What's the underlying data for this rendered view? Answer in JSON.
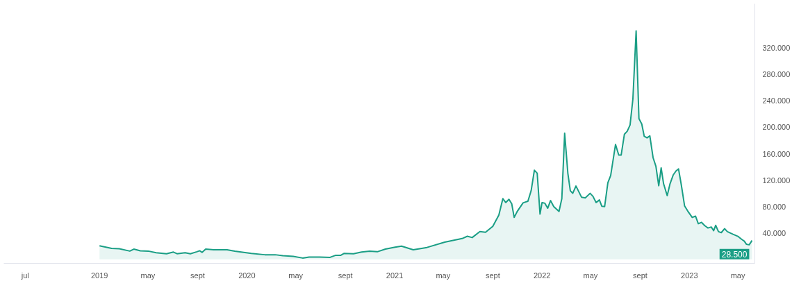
{
  "chart_data": {
    "type": "area",
    "x": [
      "2019-01-01",
      "2019-01-31",
      "2019-02-19",
      "2019-03-17",
      "2019-03-27",
      "2019-04-12",
      "2019-05-02",
      "2019-05-21",
      "2019-06-16",
      "2019-07-03",
      "2019-07-12",
      "2019-08-01",
      "2019-08-14",
      "2019-08-30",
      "2019-09-06",
      "2019-09-12",
      "2019-09-21",
      "2019-10-11",
      "2019-11-13",
      "2019-12-02",
      "2020-01-12",
      "2020-02-14",
      "2020-03-11",
      "2020-03-30",
      "2020-04-25",
      "2020-05-18",
      "2020-06-03",
      "2020-06-29",
      "2020-07-25",
      "2020-08-07",
      "2020-08-20",
      "2020-08-29",
      "2020-09-21",
      "2020-10-11",
      "2020-10-31",
      "2020-11-19",
      "2020-12-09",
      "2021-01-02",
      "2021-01-18",
      "2021-02-16",
      "2021-03-22",
      "2021-05-05",
      "2021-06-17",
      "2021-06-30",
      "2021-07-12",
      "2021-07-31",
      "2021-08-14",
      "2021-09-01",
      "2021-09-16",
      "2021-09-26",
      "2021-10-03",
      "2021-10-11",
      "2021-10-18",
      "2021-10-24",
      "2021-11-01",
      "2021-11-15",
      "2021-11-27",
      "2021-12-05",
      "2021-12-13",
      "2021-12-20",
      "2021-12-27",
      "2022-01-01",
      "2022-01-08",
      "2022-01-15",
      "2022-01-22",
      "2022-01-30",
      "2022-02-12",
      "2022-02-19",
      "2022-02-26",
      "2022-03-06",
      "2022-03-12",
      "2022-03-18",
      "2022-03-26",
      "2022-04-09",
      "2022-04-18",
      "2022-04-30",
      "2022-05-07",
      "2022-05-15",
      "2022-05-23",
      "2022-05-29",
      "2022-06-05",
      "2022-06-13",
      "2022-06-20",
      "2022-07-02",
      "2022-07-10",
      "2022-07-16",
      "2022-07-24",
      "2022-07-31",
      "2022-08-07",
      "2022-08-14",
      "2022-08-22",
      "2022-08-29",
      "2022-09-05",
      "2022-09-11",
      "2022-09-18",
      "2022-09-25",
      "2022-10-03",
      "2022-10-10",
      "2022-10-17",
      "2022-10-23",
      "2022-10-29",
      "2022-11-07",
      "2022-11-14",
      "2022-11-22",
      "2022-11-29",
      "2022-12-05",
      "2022-12-12",
      "2022-12-20",
      "2022-12-28",
      "2023-01-08",
      "2023-01-16",
      "2023-01-23",
      "2023-01-31",
      "2023-02-08",
      "2023-02-16",
      "2023-02-24",
      "2023-03-02",
      "2023-03-07",
      "2023-03-14",
      "2023-03-21",
      "2023-03-29",
      "2023-04-05",
      "2023-04-19",
      "2023-05-02",
      "2023-05-10",
      "2023-05-17",
      "2023-05-22",
      "2023-05-29",
      "2023-06-05"
    ],
    "series": [
      {
        "color": "#1a9e85",
        "values": [
          20.5,
          16.5,
          16,
          12.5,
          15.5,
          13,
          12.5,
          10,
          8.5,
          11,
          8.5,
          10,
          8.5,
          11.5,
          13,
          10.5,
          15.5,
          14.5,
          14.5,
          12.5,
          9,
          7,
          7,
          5.5,
          4.5,
          2,
          3.5,
          3.5,
          3,
          6,
          6,
          9,
          8.5,
          11,
          12.5,
          11.5,
          15.5,
          18.5,
          20,
          14.5,
          18,
          26,
          31.5,
          35,
          33,
          42,
          41,
          50,
          67,
          92,
          86,
          91,
          84,
          63.5,
          73,
          85.5,
          88,
          104,
          135,
          130.5,
          68.5,
          86,
          85,
          77.5,
          89,
          80,
          72.5,
          92,
          191,
          130,
          104,
          100,
          111,
          94,
          93,
          100,
          95.5,
          86,
          90,
          80.5,
          80,
          116,
          127,
          174,
          158,
          158,
          189.5,
          194,
          203.5,
          243,
          346,
          213,
          205,
          186.5,
          184,
          187,
          154,
          141,
          111.5,
          138.5,
          114.5,
          96.5,
          114.5,
          128,
          134,
          137,
          112.5,
          81,
          73,
          63.5,
          65.5,
          54,
          56,
          51,
          47.5,
          49,
          43.5,
          51.5,
          42,
          40.5,
          46.5,
          42,
          38,
          34.5,
          30.5,
          27.5,
          23,
          22,
          28.5
        ]
      }
    ],
    "xticks": [
      {
        "value": "2018-07-01",
        "label": "jul"
      },
      {
        "value": "2019-01-01",
        "label": "2019"
      },
      {
        "value": "2019-05-01",
        "label": "may"
      },
      {
        "value": "2019-09-01",
        "label": "sept"
      },
      {
        "value": "2020-01-01",
        "label": "2020"
      },
      {
        "value": "2020-05-01",
        "label": "may"
      },
      {
        "value": "2020-09-01",
        "label": "sept"
      },
      {
        "value": "2021-01-01",
        "label": "2021"
      },
      {
        "value": "2021-05-01",
        "label": "may"
      },
      {
        "value": "2021-09-01",
        "label": "sept"
      },
      {
        "value": "2022-01-01",
        "label": "2022"
      },
      {
        "value": "2022-05-01",
        "label": "may"
      },
      {
        "value": "2022-09-01",
        "label": "sept"
      },
      {
        "value": "2023-01-01",
        "label": "2023"
      },
      {
        "value": "2023-05-01",
        "label": "may"
      }
    ],
    "yticks": [
      {
        "value": 40,
        "label": "40.000"
      },
      {
        "value": 80,
        "label": "80.000"
      },
      {
        "value": 120,
        "label": "120.000"
      },
      {
        "value": 160,
        "label": "160.000"
      },
      {
        "value": 200,
        "label": "200.000"
      },
      {
        "value": 240,
        "label": "240.000"
      },
      {
        "value": 280,
        "label": "280.000"
      },
      {
        "value": 320,
        "label": "320.000"
      }
    ],
    "annotations": [
      {
        "text": "28.500",
        "x": "2023-06-05",
        "y": 28.5
      }
    ],
    "xlim": [
      "2018-05-09",
      "2023-06-12"
    ],
    "ylim": [
      -6,
      387
    ],
    "grid": false
  }
}
